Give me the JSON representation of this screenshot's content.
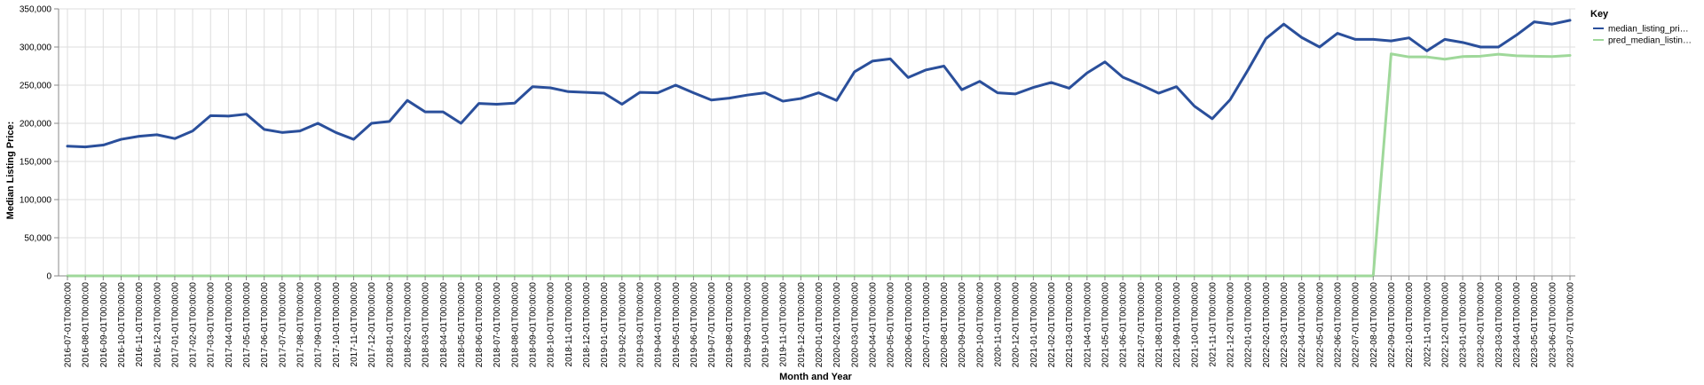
{
  "chart_data": {
    "type": "line",
    "xlabel": "Month and Year",
    "ylabel": "Median Listing Price:",
    "ylim": [
      0,
      350000
    ],
    "yticks": [
      0,
      50000,
      100000,
      150000,
      200000,
      250000,
      300000,
      350000
    ],
    "ytick_labels": [
      "0",
      "50,000",
      "100,000",
      "150,000",
      "200,000",
      "250,000",
      "300,000",
      "350,000"
    ],
    "grid": true,
    "legend": {
      "title": "Key",
      "placement": "right"
    },
    "colors": {
      "median": "#2a4f9b",
      "pred": "#9fd89a",
      "grid": "#dddddd",
      "axis": "#888888"
    },
    "x": [
      "2016-07-01T00:00:00",
      "2016-08-01T00:00:00",
      "2016-09-01T00:00:00",
      "2016-10-01T00:00:00",
      "2016-11-01T00:00:00",
      "2016-12-01T00:00:00",
      "2017-01-01T00:00:00",
      "2017-02-01T00:00:00",
      "2017-03-01T00:00:00",
      "2017-04-01T00:00:00",
      "2017-05-01T00:00:00",
      "2017-06-01T00:00:00",
      "2017-07-01T00:00:00",
      "2017-08-01T00:00:00",
      "2017-09-01T00:00:00",
      "2017-10-01T00:00:00",
      "2017-11-01T00:00:00",
      "2017-12-01T00:00:00",
      "2018-01-01T00:00:00",
      "2018-02-01T00:00:00",
      "2018-03-01T00:00:00",
      "2018-04-01T00:00:00",
      "2018-05-01T00:00:00",
      "2018-06-01T00:00:00",
      "2018-07-01T00:00:00",
      "2018-08-01T00:00:00",
      "2018-09-01T00:00:00",
      "2018-10-01T00:00:00",
      "2018-11-01T00:00:00",
      "2018-12-01T00:00:00",
      "2019-01-01T00:00:00",
      "2019-02-01T00:00:00",
      "2019-03-01T00:00:00",
      "2019-04-01T00:00:00",
      "2019-05-01T00:00:00",
      "2019-06-01T00:00:00",
      "2019-07-01T00:00:00",
      "2019-08-01T00:00:00",
      "2019-09-01T00:00:00",
      "2019-10-01T00:00:00",
      "2019-11-01T00:00:00",
      "2019-12-01T00:00:00",
      "2020-01-01T00:00:00",
      "2020-02-01T00:00:00",
      "2020-03-01T00:00:00",
      "2020-04-01T00:00:00",
      "2020-05-01T00:00:00",
      "2020-06-01T00:00:00",
      "2020-07-01T00:00:00",
      "2020-08-01T00:00:00",
      "2020-09-01T00:00:00",
      "2020-10-01T00:00:00",
      "2020-11-01T00:00:00",
      "2020-12-01T00:00:00",
      "2021-01-01T00:00:00",
      "2021-02-01T00:00:00",
      "2021-03-01T00:00:00",
      "2021-04-01T00:00:00",
      "2021-05-01T00:00:00",
      "2021-06-01T00:00:00",
      "2021-07-01T00:00:00",
      "2021-08-01T00:00:00",
      "2021-09-01T00:00:00",
      "2021-10-01T00:00:00",
      "2021-11-01T00:00:00",
      "2021-12-01T00:00:00",
      "2022-01-01T00:00:00",
      "2022-02-01T00:00:00",
      "2022-03-01T00:00:00",
      "2022-04-01T00:00:00",
      "2022-05-01T00:00:00",
      "2022-06-01T00:00:00",
      "2022-07-01T00:00:00",
      "2022-08-01T00:00:00",
      "2022-09-01T00:00:00",
      "2022-10-01T00:00:00",
      "2022-11-01T00:00:00",
      "2022-12-01T00:00:00",
      "2023-01-01T00:00:00",
      "2023-02-01T00:00:00",
      "2023-03-01T00:00:00",
      "2023-04-01T00:00:00",
      "2023-05-01T00:00:00",
      "2023-06-01T00:00:00",
      "2023-07-01T00:00:00"
    ],
    "series": [
      {
        "name": "median_listing_pri…",
        "color": "#2a4f9b",
        "values": [
          170000,
          169000,
          171500,
          179000,
          183000,
          185000,
          180000,
          190000,
          210000,
          209500,
          212000,
          192000,
          188000,
          190000,
          200000,
          188000,
          179000,
          200000,
          202500,
          230000,
          215000,
          215000,
          200000,
          226000,
          225000,
          226500,
          248000,
          246500,
          241500,
          240500,
          239500,
          225000,
          240500,
          240000,
          250000,
          240000,
          230500,
          233000,
          237000,
          240000,
          229000,
          232500,
          240000,
          230000,
          267500,
          281500,
          284500,
          260000,
          270000,
          275000,
          244000,
          255000,
          240000,
          238500,
          247000,
          253500,
          246000,
          266000,
          280500,
          260500,
          250500,
          239500,
          248000,
          222500,
          206000,
          231000,
          270000,
          311000,
          330000,
          312500,
          300000,
          318000,
          310000,
          310000,
          308000,
          312000,
          295000,
          310000,
          306000,
          300000,
          300000,
          315500,
          333000,
          330000,
          335000
        ]
      },
      {
        "name": "pred_median_listin…",
        "color": "#9fd89a",
        "values": [
          0,
          0,
          0,
          0,
          0,
          0,
          0,
          0,
          0,
          0,
          0,
          0,
          0,
          0,
          0,
          0,
          0,
          0,
          0,
          0,
          0,
          0,
          0,
          0,
          0,
          0,
          0,
          0,
          0,
          0,
          0,
          0,
          0,
          0,
          0,
          0,
          0,
          0,
          0,
          0,
          0,
          0,
          0,
          0,
          0,
          0,
          0,
          0,
          0,
          0,
          0,
          0,
          0,
          0,
          0,
          0,
          0,
          0,
          0,
          0,
          0,
          0,
          0,
          0,
          0,
          0,
          0,
          0,
          0,
          0,
          0,
          0,
          0,
          0,
          291000,
          287000,
          287000,
          284000,
          287500,
          288000,
          290500,
          288500,
          288000,
          287500,
          289000
        ]
      }
    ]
  }
}
